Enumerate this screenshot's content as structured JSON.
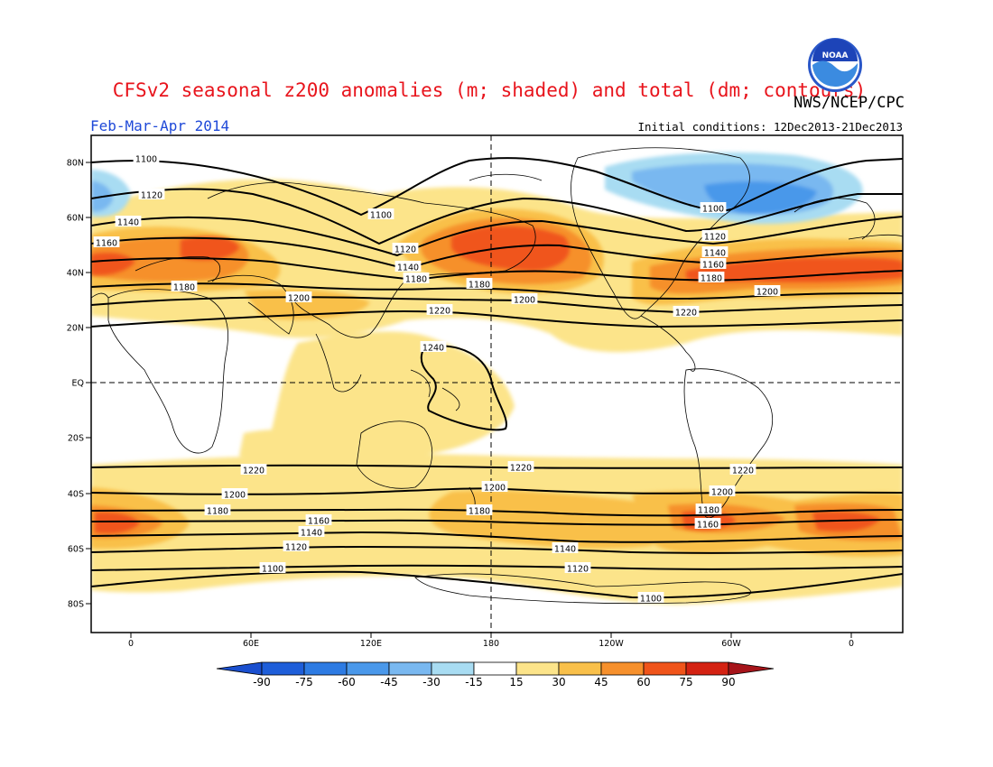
{
  "header": {
    "title": "CFSv2 seasonal z200 anomalies (m; shaded) and total (dm; contours)",
    "agency": "NWS/NCEP/CPC",
    "logo_text": "NOAA",
    "season": "Feb-Mar-Apr 2014",
    "initial_conditions": "Initial conditions: 12Dec2013-21Dec2013"
  },
  "map": {
    "lat_labels": [
      "80N",
      "60N",
      "40N",
      "20N",
      "EQ",
      "20S",
      "40S",
      "60S",
      "80S"
    ],
    "lon_labels": [
      "0",
      "60E",
      "120E",
      "180",
      "120W",
      "60W",
      "0"
    ],
    "contour_labels": [
      "1100",
      "1120",
      "1140",
      "1160",
      "1180",
      "1200",
      "1220",
      "1240"
    ]
  },
  "colorbar": {
    "tick_labels": [
      "-90",
      "-75",
      "-60",
      "-45",
      "-30",
      "-15",
      "15",
      "30",
      "45",
      "60",
      "75",
      "90"
    ],
    "colors": [
      "#1e5ed9",
      "#2d7be3",
      "#4a98ea",
      "#79b8f0",
      "#a8dcf2",
      "#ffffff",
      "#fce48a",
      "#f9c04a",
      "#f6902c",
      "#f0541a",
      "#d42212"
    ],
    "low_arrow_color": "#1a4fcf",
    "high_arrow_color": "#a6141a"
  }
}
